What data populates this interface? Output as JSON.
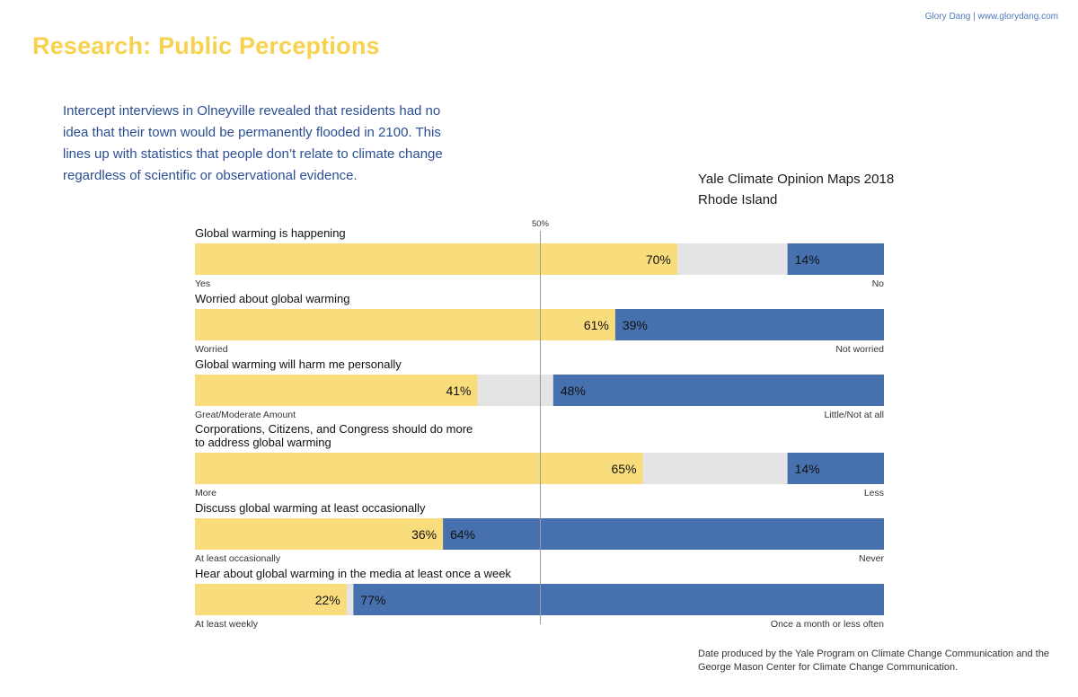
{
  "credit": "Glory Dang | www.glorydang.com",
  "page_title": "Research: Public Perceptions",
  "intro_text": "Intercept interviews in Olneyville revealed that residents had no idea that their town would be permanently flooded in 2100. This lines up with statistics that people don’t relate to climate change regardless of scientific or observational evidence.",
  "chart_heading": {
    "line1": "Yale Climate Opinion Maps 2018",
    "line2": "Rhode Island"
  },
  "footnote": "Date produced by the Yale Program on Climate Change Communication and the George Mason Center for Climate Change Communication.",
  "colors": {
    "title": "#f7d24f",
    "intro": "#2b4f92",
    "positive": "#f9dc7c",
    "neutral": "#e4e4e4",
    "negative": "#4670ae",
    "midline": "#9a9a9a"
  },
  "chart_data": {
    "type": "bar",
    "orientation": "horizontal",
    "stacked": true,
    "xlim": [
      0,
      100
    ],
    "unit": "%",
    "reference_line": {
      "value": 50,
      "label": "50%"
    },
    "questions": [
      {
        "label": [
          "Global warming is happening"
        ],
        "positive": 70,
        "negative": 14,
        "left_label": "Yes",
        "right_label": "No"
      },
      {
        "label": [
          "Worried about global warming"
        ],
        "positive": 61,
        "negative": 39,
        "left_label": "Worried",
        "right_label": "Not worried"
      },
      {
        "label": [
          "Global warming will harm me personally"
        ],
        "positive": 41,
        "negative": 48,
        "left_label": "Great/Moderate Amount",
        "right_label": "Little/Not at all"
      },
      {
        "label": [
          "Corporations, Citizens, and Congress should do more",
          "to address global warming"
        ],
        "positive": 65,
        "negative": 14,
        "left_label": "More",
        "right_label": "Less"
      },
      {
        "label": [
          "Discuss global warming at least occasionally"
        ],
        "positive": 36,
        "negative": 64,
        "left_label": "At least occasionally",
        "right_label": "Never"
      },
      {
        "label": [
          "Hear about global warming in the media at least once a week"
        ],
        "positive": 22,
        "negative": 77,
        "left_label": "At least weekly",
        "right_label": "Once a month or less often"
      }
    ]
  }
}
